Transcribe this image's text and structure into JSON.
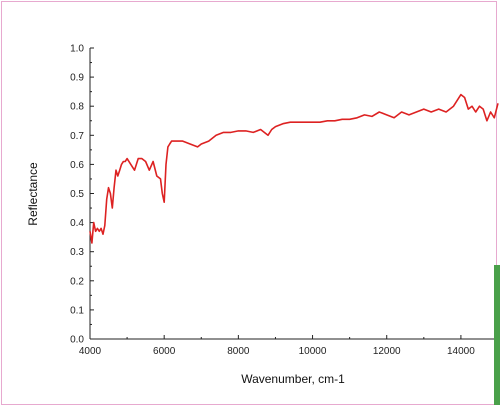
{
  "chart_data": {
    "type": "line",
    "title": "",
    "xlabel": "Wavenumber, cm-1",
    "ylabel": "Reflectance",
    "xlim": [
      4000,
      15000
    ],
    "ylim": [
      0,
      1.0
    ],
    "x_ticks": [
      "4000",
      "6000",
      "8000",
      "10000",
      "12000",
      "14000"
    ],
    "x_tick_values": [
      4000,
      6000,
      8000,
      10000,
      12000,
      14000
    ],
    "y_ticks": [
      "0.0",
      "0.1",
      "0.2",
      "0.3",
      "0.4",
      "0.5",
      "0.6",
      "0.7",
      "0.8",
      "0.9",
      "1.0"
    ],
    "y_tick_values": [
      0,
      0.1,
      0.2,
      0.3,
      0.4,
      0.5,
      0.6,
      0.7,
      0.8,
      0.9,
      1.0
    ],
    "grid": false,
    "series": [
      {
        "color": "#dd2222",
        "x": [
          4000,
          4050,
          4100,
          4150,
          4200,
          4250,
          4300,
          4350,
          4400,
          4450,
          4500,
          4550,
          4600,
          4650,
          4700,
          4750,
          4800,
          4850,
          4900,
          4950,
          5000,
          5100,
          5200,
          5300,
          5400,
          5500,
          5600,
          5700,
          5800,
          5900,
          5950,
          6000,
          6050,
          6100,
          6150,
          6200,
          6300,
          6500,
          6700,
          6900,
          7000,
          7200,
          7400,
          7600,
          7800,
          8000,
          8200,
          8400,
          8600,
          8700,
          8800,
          8900,
          9000,
          9200,
          9400,
          9600,
          9800,
          10000,
          10200,
          10400,
          10600,
          10800,
          11000,
          11200,
          11400,
          11600,
          11800,
          12000,
          12200,
          12400,
          12600,
          12800,
          13000,
          13200,
          13400,
          13600,
          13800,
          14000,
          14100,
          14200,
          14300,
          14400,
          14500,
          14600,
          14700,
          14800,
          14900,
          15000
        ],
        "y": [
          0.37,
          0.33,
          0.4,
          0.37,
          0.38,
          0.37,
          0.38,
          0.36,
          0.39,
          0.48,
          0.52,
          0.5,
          0.45,
          0.52,
          0.58,
          0.56,
          0.58,
          0.6,
          0.61,
          0.61,
          0.62,
          0.6,
          0.58,
          0.62,
          0.62,
          0.61,
          0.58,
          0.61,
          0.56,
          0.55,
          0.5,
          0.47,
          0.6,
          0.66,
          0.67,
          0.68,
          0.68,
          0.68,
          0.67,
          0.66,
          0.67,
          0.68,
          0.7,
          0.71,
          0.71,
          0.715,
          0.715,
          0.71,
          0.72,
          0.71,
          0.7,
          0.72,
          0.73,
          0.74,
          0.745,
          0.745,
          0.745,
          0.745,
          0.745,
          0.75,
          0.75,
          0.755,
          0.755,
          0.76,
          0.77,
          0.765,
          0.78,
          0.77,
          0.76,
          0.78,
          0.77,
          0.78,
          0.79,
          0.78,
          0.79,
          0.78,
          0.8,
          0.84,
          0.83,
          0.79,
          0.8,
          0.78,
          0.8,
          0.79,
          0.75,
          0.78,
          0.76,
          0.81
        ]
      }
    ]
  }
}
